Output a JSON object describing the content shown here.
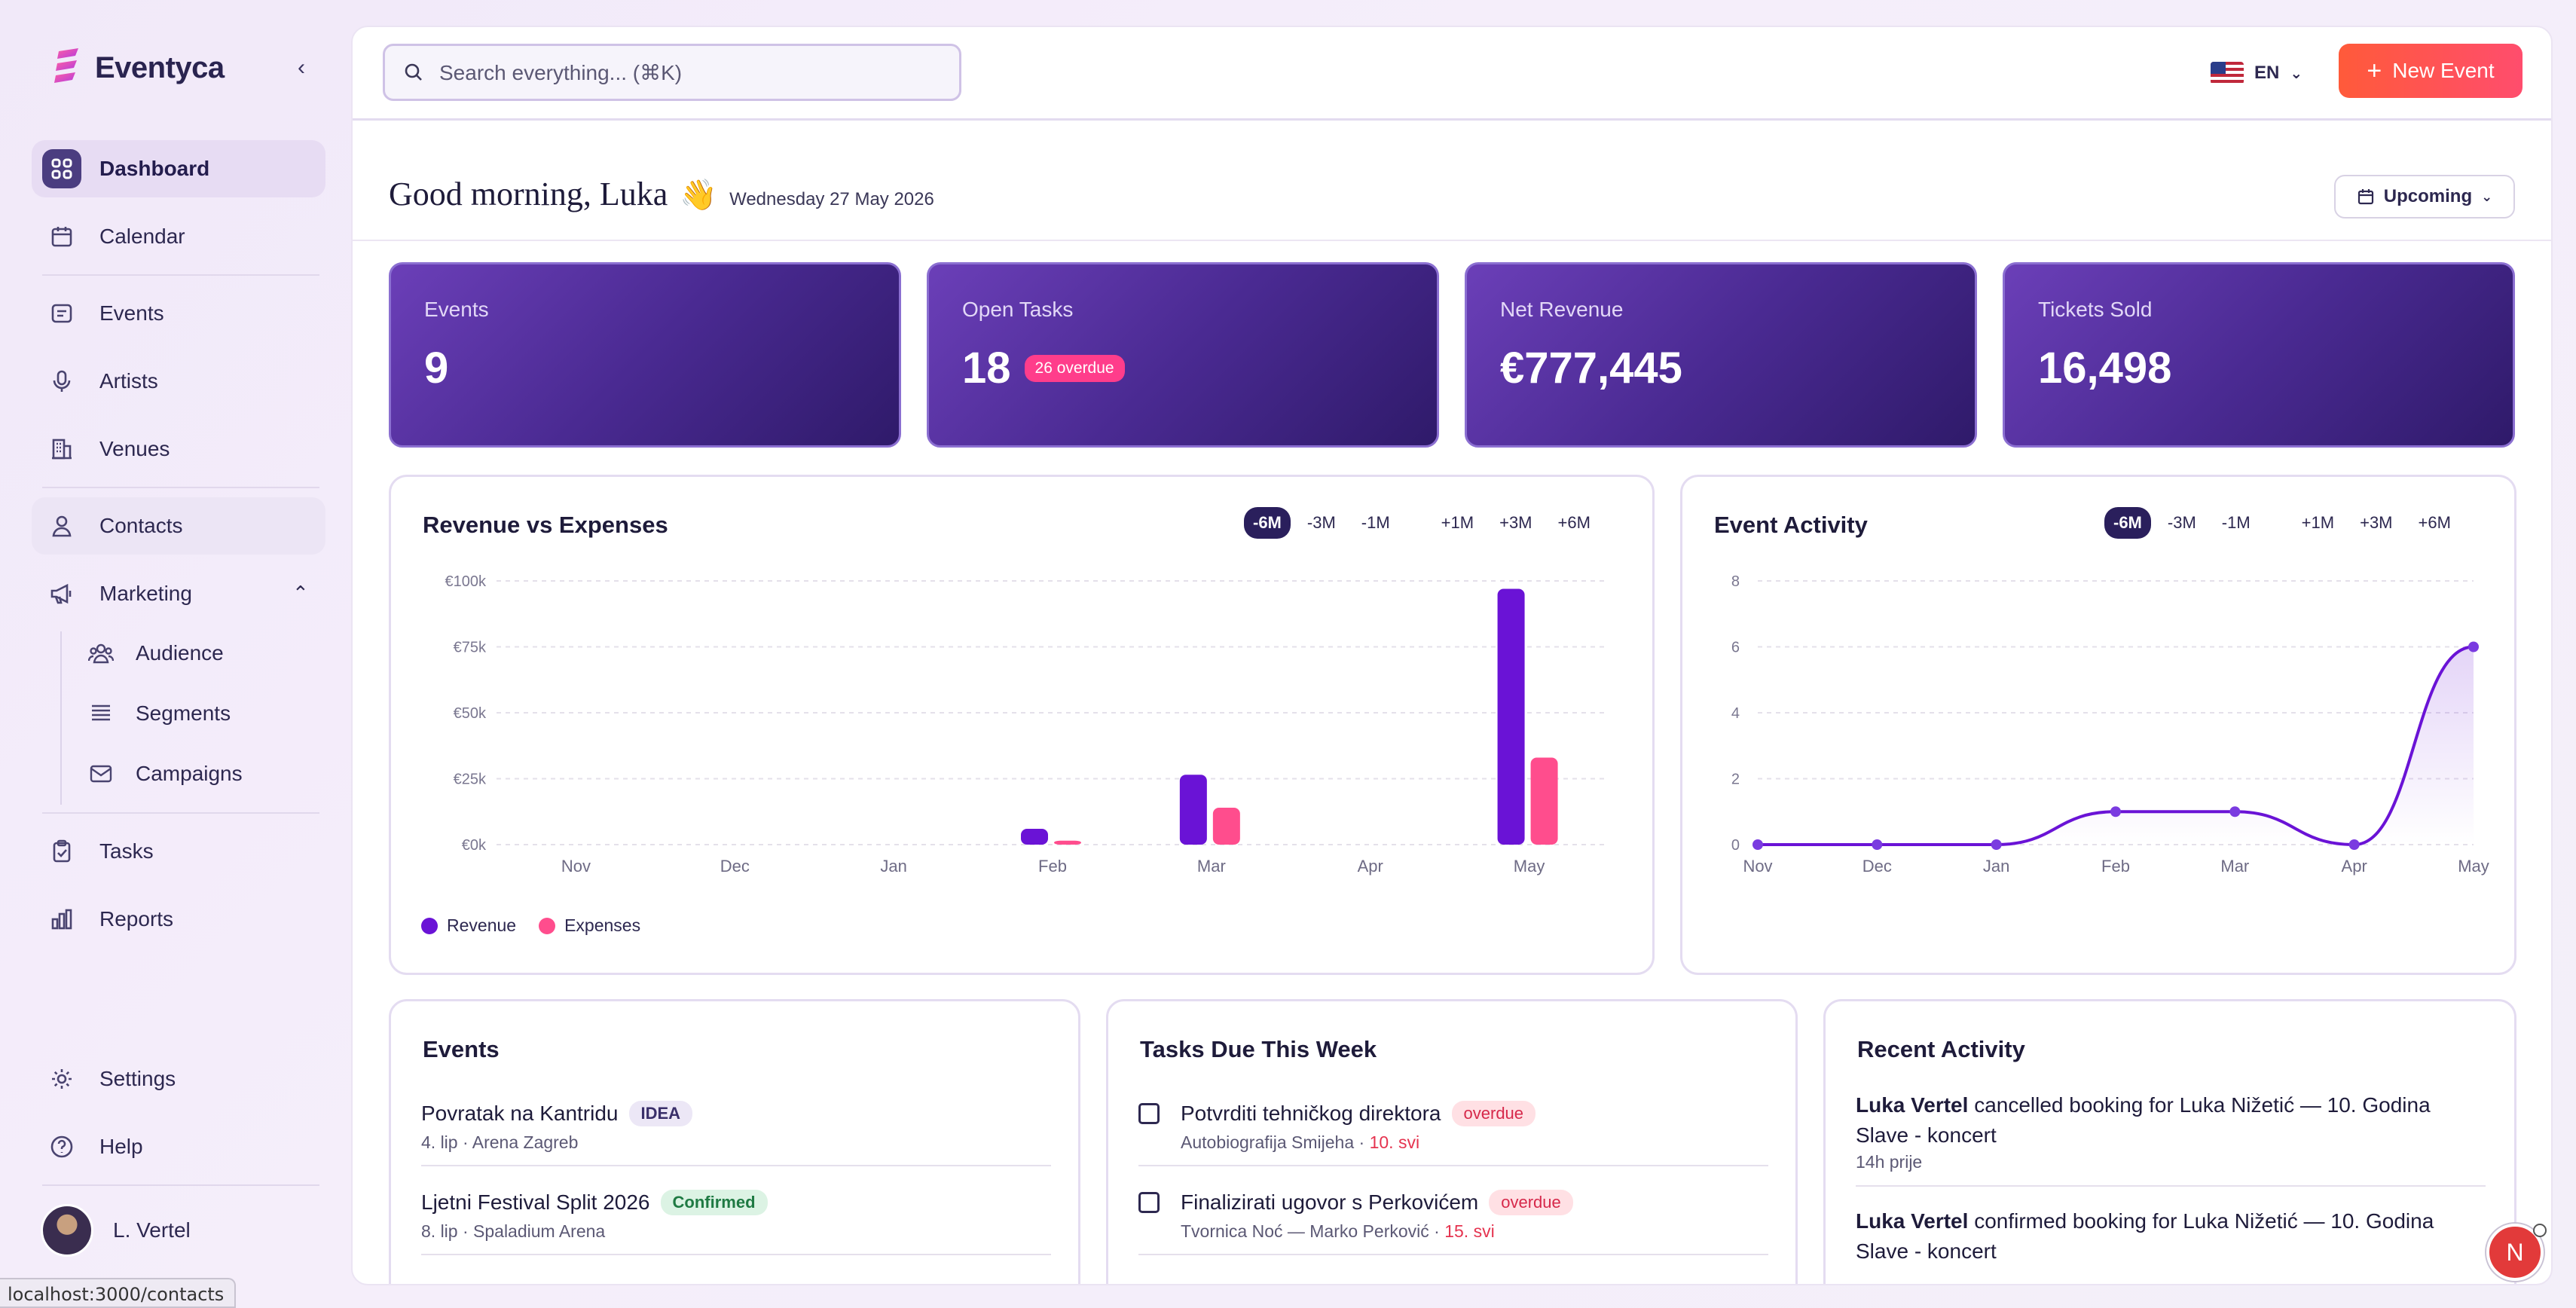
{
  "app": {
    "name": "Eventyca"
  },
  "sidebar": {
    "items": [
      {
        "label": "Dashboard",
        "icon": "grid-icon"
      },
      {
        "label": "Calendar",
        "icon": "calendar-icon"
      },
      {
        "label": "Events",
        "icon": "ticket-icon"
      },
      {
        "label": "Artists",
        "icon": "microphone-icon"
      },
      {
        "label": "Venues",
        "icon": "building-icon"
      },
      {
        "label": "Contacts",
        "icon": "person-icon"
      },
      {
        "label": "Marketing",
        "icon": "megaphone-icon"
      }
    ],
    "marketing_sub": [
      {
        "label": "Audience",
        "icon": "users-icon"
      },
      {
        "label": "Segments",
        "icon": "list-icon"
      },
      {
        "label": "Campaigns",
        "icon": "mail-icon"
      }
    ],
    "tasks": {
      "label": "Tasks",
      "icon": "clipboard-icon"
    },
    "reports": {
      "label": "Reports",
      "icon": "bar-chart-icon"
    },
    "settings": {
      "label": "Settings",
      "icon": "gear-icon"
    },
    "help": {
      "label": "Help",
      "icon": "question-icon"
    },
    "user": {
      "name": "L. Vertel"
    }
  },
  "status_url": "localhost:3000/contacts",
  "topbar": {
    "search_placeholder": "Search everything... (⌘K)",
    "lang": "EN",
    "new_event": "New Event"
  },
  "greeting": {
    "title": "Good morning, Luka",
    "emoji": "👋",
    "date": "Wednesday 27 May 2026",
    "filter": "Upcoming"
  },
  "stats": [
    {
      "label": "Events",
      "value": "9"
    },
    {
      "label": "Open Tasks",
      "value": "18",
      "badge": "26 overdue"
    },
    {
      "label": "Net Revenue",
      "value": "€777,445"
    },
    {
      "label": "Tickets Sold",
      "value": "16,498"
    }
  ],
  "ranges": [
    "-6M",
    "-3M",
    "-1M",
    "+1M",
    "+3M",
    "+6M"
  ],
  "colors": {
    "revenue": "#6a13d6",
    "expenses": "#ff4d8d",
    "accent": "#ff5a3a"
  },
  "chart_data": [
    {
      "type": "bar",
      "title": "Revenue vs Expenses",
      "categories": [
        "Nov",
        "Dec",
        "Jan",
        "Feb",
        "Mar",
        "Apr",
        "May"
      ],
      "series": [
        {
          "name": "Revenue",
          "values": [
            0,
            0,
            0,
            6000,
            26500,
            0,
            97000
          ]
        },
        {
          "name": "Expenses",
          "values": [
            0,
            0,
            0,
            1500,
            14000,
            0,
            33000
          ]
        }
      ],
      "yticks": [
        "€0k",
        "€25k",
        "€50k",
        "€75k",
        "€100k"
      ],
      "ylim": [
        0,
        100000
      ],
      "grid": true,
      "legend": "bottom-left"
    },
    {
      "type": "line",
      "title": "Event Activity",
      "categories": [
        "Nov",
        "Dec",
        "Jan",
        "Feb",
        "Mar",
        "Apr",
        "May"
      ],
      "series": [
        {
          "values": [
            0,
            0,
            0,
            1,
            1,
            0,
            6
          ]
        }
      ],
      "yticks": [
        "0",
        "2",
        "4",
        "6",
        "8"
      ],
      "ylim": [
        0,
        8
      ],
      "grid": true
    }
  ],
  "events_card": {
    "title": "Events",
    "items": [
      {
        "name": "Povratak na Kantridu",
        "tag": "IDEA",
        "sub": "4. lip · Arena Zagreb"
      },
      {
        "name": "Ljetni Festival Split 2026",
        "tag": "Confirmed",
        "sub": "8. lip · Spaladium Arena"
      }
    ]
  },
  "tasks_card": {
    "title": "Tasks Due This Week",
    "items": [
      {
        "name": "Potvrditi tehničkog direktora",
        "tag": "overdue",
        "sub": "Autobiografija Smijeha",
        "due": "10. svi"
      },
      {
        "name": "Finalizirati ugovor s Perkovićem",
        "tag": "overdue",
        "sub": "Tvornica Noć — Marko Perković",
        "due": "15. svi"
      }
    ]
  },
  "activity_card": {
    "title": "Recent Activity",
    "items": [
      {
        "actor": "Luka Vertel",
        "text": "cancelled booking for Luka Nižetić — 10. Godina Slave - koncert",
        "time": "14h prije"
      },
      {
        "actor": "Luka Vertel",
        "text": "confirmed booking for Luka Nižetić — 10. Godina Slave - koncert"
      }
    ]
  },
  "fab": {
    "initial": "N"
  }
}
